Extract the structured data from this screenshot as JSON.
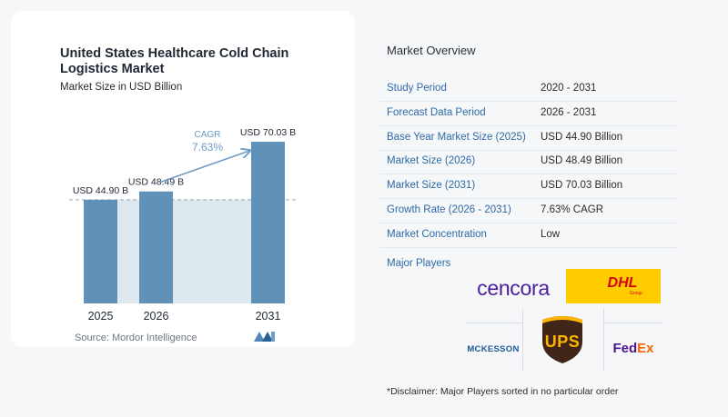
{
  "chart_data": {
    "type": "bar",
    "title": "United States Healthcare Cold Chain Logistics Market",
    "subtitle": "Market Size in USD Billion",
    "categories": [
      "2025",
      "2026",
      "2031"
    ],
    "values": [
      44.9,
      48.49,
      70.03
    ],
    "data_labels": [
      "USD 44.90 B",
      "USD 48.49 B",
      "USD 70.03 B"
    ],
    "ylim": [
      0,
      70.03
    ],
    "cagr_label": "CAGR",
    "cagr_value": "7.63%",
    "colors": {
      "bar": "#5f91b9",
      "reference_fill": "#dde8ef",
      "reference_line": "#9aa7b3",
      "arrow": "#6c9bc6",
      "cagr_text": "#6c9bc6"
    }
  },
  "source": "Source:  Mordor Intelligence",
  "overview": {
    "title": "Market Overview",
    "rows": [
      {
        "label": "Study Period",
        "value": "2020 - 2031"
      },
      {
        "label": "Forecast Data Period",
        "value": "2026 - 2031"
      },
      {
        "label": "Base Year Market Size (2025)",
        "value": "USD 44.90 Billion"
      },
      {
        "label": "Market Size (2026)",
        "value": "USD 48.49 Billion"
      },
      {
        "label": "Market Size (2031)",
        "value": "USD 70.03 Billion"
      },
      {
        "label": "Growth Rate (2026 - 2031)",
        "value": "7.63% CAGR"
      },
      {
        "label": "Market Concentration",
        "value": "Low"
      }
    ],
    "players_title": "Major Players",
    "players": {
      "cencora": "cencora",
      "dhl": "DHL",
      "dhl_sub": "Group",
      "mckesson": "MCKESSON",
      "ups": "UPS",
      "fedex_fed": "Fed",
      "fedex_ex": "Ex"
    },
    "disclaimer": "*Disclaimer: Major Players sorted in no particular order"
  }
}
